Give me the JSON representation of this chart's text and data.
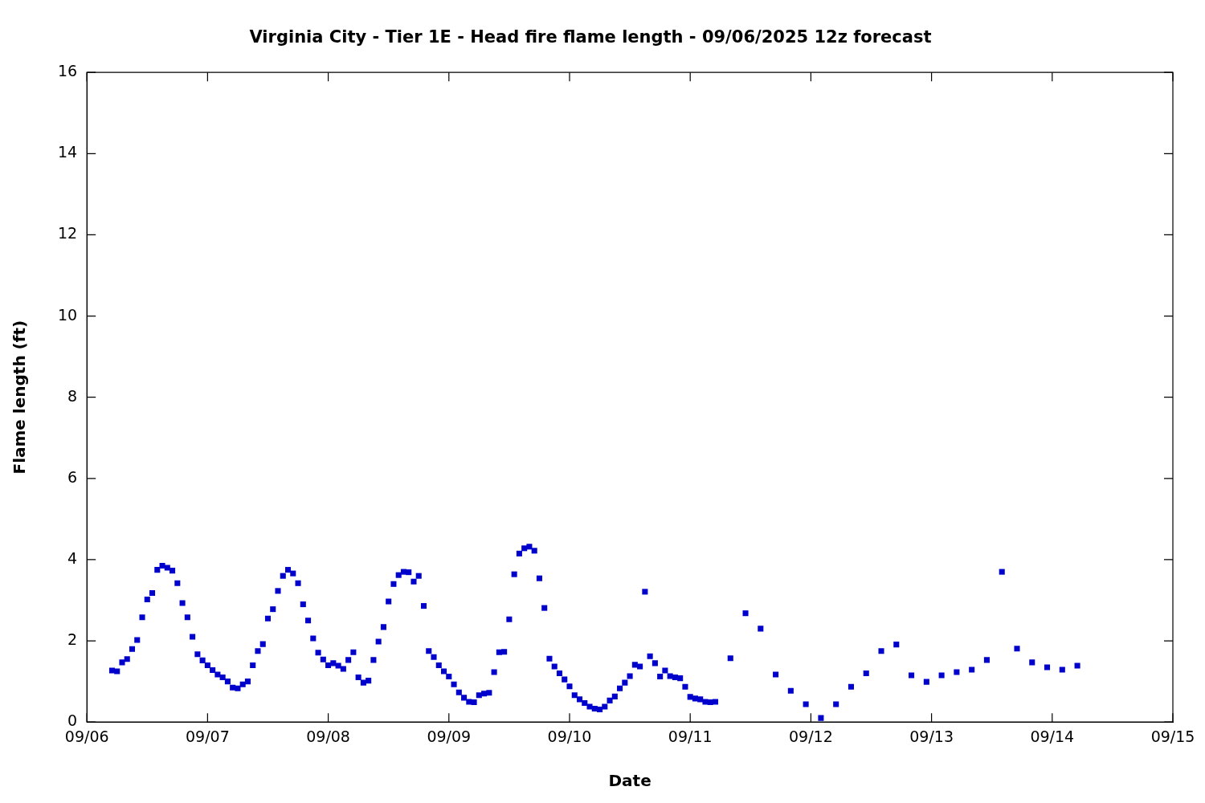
{
  "chart_data": {
    "type": "scatter",
    "title": "Virginia City - Tier 1E - Head fire flame length - 09/06/2025 12z forecast",
    "xlabel": "Date",
    "ylabel": "Flame length (ft)",
    "marker": "square",
    "grid": false,
    "legend": false,
    "xlim": [
      "2025-09-06",
      "2025-09-15"
    ],
    "xticks": [
      {
        "value": "2025-09-06",
        "label": "09/06"
      },
      {
        "value": "2025-09-07",
        "label": "09/07"
      },
      {
        "value": "2025-09-08",
        "label": "09/08"
      },
      {
        "value": "2025-09-09",
        "label": "09/09"
      },
      {
        "value": "2025-09-10",
        "label": "09/10"
      },
      {
        "value": "2025-09-11",
        "label": "09/11"
      },
      {
        "value": "2025-09-12",
        "label": "09/12"
      },
      {
        "value": "2025-09-13",
        "label": "09/13"
      },
      {
        "value": "2025-09-14",
        "label": "09/14"
      },
      {
        "value": "2025-09-15",
        "label": "09/15"
      }
    ],
    "ylim": [
      0,
      16
    ],
    "yticks": [
      0,
      2,
      4,
      6,
      8,
      10,
      12,
      14,
      16
    ],
    "series": [
      {
        "color": "#0000cc",
        "x": [
          "2025-09-06T05:00",
          "2025-09-06T06:00",
          "2025-09-06T07:00",
          "2025-09-06T08:00",
          "2025-09-06T09:00",
          "2025-09-06T10:00",
          "2025-09-06T11:00",
          "2025-09-06T12:00",
          "2025-09-06T13:00",
          "2025-09-06T14:00",
          "2025-09-06T15:00",
          "2025-09-06T16:00",
          "2025-09-06T17:00",
          "2025-09-06T18:00",
          "2025-09-06T19:00",
          "2025-09-06T20:00",
          "2025-09-06T21:00",
          "2025-09-06T22:00",
          "2025-09-06T23:00",
          "2025-09-07T00:00",
          "2025-09-07T01:00",
          "2025-09-07T02:00",
          "2025-09-07T03:00",
          "2025-09-07T04:00",
          "2025-09-07T05:00",
          "2025-09-07T06:00",
          "2025-09-07T07:00",
          "2025-09-07T08:00",
          "2025-09-07T09:00",
          "2025-09-07T10:00",
          "2025-09-07T11:00",
          "2025-09-07T12:00",
          "2025-09-07T13:00",
          "2025-09-07T14:00",
          "2025-09-07T15:00",
          "2025-09-07T16:00",
          "2025-09-07T17:00",
          "2025-09-07T18:00",
          "2025-09-07T19:00",
          "2025-09-07T20:00",
          "2025-09-07T21:00",
          "2025-09-07T22:00",
          "2025-09-07T23:00",
          "2025-09-08T00:00",
          "2025-09-08T01:00",
          "2025-09-08T02:00",
          "2025-09-08T03:00",
          "2025-09-08T04:00",
          "2025-09-08T05:00",
          "2025-09-08T06:00",
          "2025-09-08T07:00",
          "2025-09-08T08:00",
          "2025-09-08T09:00",
          "2025-09-08T10:00",
          "2025-09-08T11:00",
          "2025-09-08T12:00",
          "2025-09-08T13:00",
          "2025-09-08T14:00",
          "2025-09-08T15:00",
          "2025-09-08T16:00",
          "2025-09-08T17:00",
          "2025-09-08T18:00",
          "2025-09-08T19:00",
          "2025-09-08T20:00",
          "2025-09-08T21:00",
          "2025-09-08T22:00",
          "2025-09-08T23:00",
          "2025-09-09T00:00",
          "2025-09-09T01:00",
          "2025-09-09T02:00",
          "2025-09-09T03:00",
          "2025-09-09T04:00",
          "2025-09-09T05:00",
          "2025-09-09T06:00",
          "2025-09-09T07:00",
          "2025-09-09T08:00",
          "2025-09-09T09:00",
          "2025-09-09T10:00",
          "2025-09-09T11:00",
          "2025-09-09T12:00",
          "2025-09-09T13:00",
          "2025-09-09T14:00",
          "2025-09-09T15:00",
          "2025-09-09T16:00",
          "2025-09-09T17:00",
          "2025-09-09T18:00",
          "2025-09-09T19:00",
          "2025-09-09T20:00",
          "2025-09-09T21:00",
          "2025-09-09T22:00",
          "2025-09-09T23:00",
          "2025-09-10T00:00",
          "2025-09-10T01:00",
          "2025-09-10T02:00",
          "2025-09-10T03:00",
          "2025-09-10T04:00",
          "2025-09-10T05:00",
          "2025-09-10T06:00",
          "2025-09-10T07:00",
          "2025-09-10T08:00",
          "2025-09-10T09:00",
          "2025-09-10T10:00",
          "2025-09-10T11:00",
          "2025-09-10T12:00",
          "2025-09-10T13:00",
          "2025-09-10T14:00",
          "2025-09-10T15:00",
          "2025-09-10T16:00",
          "2025-09-10T17:00",
          "2025-09-10T18:00",
          "2025-09-10T19:00",
          "2025-09-10T20:00",
          "2025-09-10T21:00",
          "2025-09-10T22:00",
          "2025-09-10T23:00",
          "2025-09-11T00:00",
          "2025-09-11T01:00",
          "2025-09-11T02:00",
          "2025-09-11T03:00",
          "2025-09-11T04:00",
          "2025-09-11T05:00",
          "2025-09-11T08:00",
          "2025-09-11T11:00",
          "2025-09-11T14:00",
          "2025-09-11T17:00",
          "2025-09-11T20:00",
          "2025-09-11T23:00",
          "2025-09-12T02:00",
          "2025-09-12T05:00",
          "2025-09-12T08:00",
          "2025-09-12T11:00",
          "2025-09-12T14:00",
          "2025-09-12T17:00",
          "2025-09-12T20:00",
          "2025-09-12T23:00",
          "2025-09-13T02:00",
          "2025-09-13T05:00",
          "2025-09-13T08:00",
          "2025-09-13T11:00",
          "2025-09-13T14:00",
          "2025-09-13T17:00",
          "2025-09-13T20:00",
          "2025-09-13T23:00",
          "2025-09-14T02:00",
          "2025-09-14T05:00"
        ],
        "values": [
          1.27,
          1.25,
          1.47,
          1.55,
          1.8,
          2.02,
          2.58,
          3.02,
          3.18,
          3.75,
          3.85,
          3.8,
          3.73,
          3.42,
          2.93,
          2.58,
          2.1,
          1.67,
          1.52,
          1.4,
          1.28,
          1.17,
          1.1,
          1.0,
          0.85,
          0.83,
          0.93,
          1.0,
          1.4,
          1.75,
          1.92,
          2.55,
          2.78,
          3.23,
          3.6,
          3.75,
          3.66,
          3.42,
          2.9,
          2.5,
          2.06,
          1.71,
          1.54,
          1.4,
          1.45,
          1.39,
          1.31,
          1.53,
          1.72,
          1.1,
          0.97,
          1.02,
          1.53,
          1.98,
          2.34,
          2.97,
          3.4,
          3.62,
          3.7,
          3.69,
          3.46,
          3.6,
          2.86,
          1.75,
          1.6,
          1.4,
          1.25,
          1.12,
          0.93,
          0.73,
          0.6,
          0.5,
          0.49,
          0.66,
          0.7,
          0.72,
          1.23,
          1.72,
          1.73,
          2.53,
          3.64,
          4.15,
          4.28,
          4.32,
          4.22,
          3.54,
          2.81,
          1.56,
          1.37,
          1.2,
          1.05,
          0.88,
          0.66,
          0.56,
          0.47,
          0.38,
          0.33,
          0.31,
          0.38,
          0.53,
          0.63,
          0.83,
          0.97,
          1.13,
          1.41,
          1.37,
          3.21,
          1.62,
          1.45,
          1.12,
          1.27,
          1.13,
          1.1,
          1.08,
          0.87,
          0.62,
          0.58,
          0.56,
          0.5,
          0.49,
          0.5,
          1.57,
          2.68,
          2.3,
          1.17,
          0.77,
          0.44,
          0.1,
          0.44,
          0.87,
          1.2,
          1.75,
          1.91,
          1.15,
          0.99,
          1.15,
          1.23,
          1.29,
          1.53,
          3.7,
          1.81,
          1.47,
          1.35,
          1.29,
          1.39
        ]
      }
    ]
  }
}
